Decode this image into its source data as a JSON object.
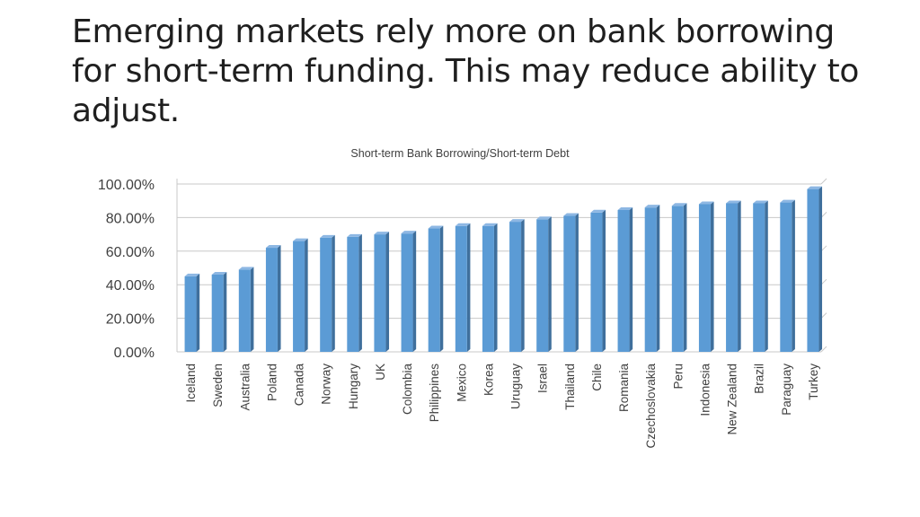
{
  "slide": {
    "title": "Emerging markets rely more on bank borrowing for short-term funding. This may reduce ability to adjust."
  },
  "colors": {
    "bar_front": "#5b9bd5",
    "bar_side": "#3f6f9c",
    "bar_top": "#8db7e3",
    "grid": "#c8c8c8",
    "text": "#404040"
  },
  "chart_data": {
    "type": "bar",
    "title": "Short-term Bank Borrowing/Short-term Debt",
    "xlabel": "",
    "ylabel": "",
    "ylim": [
      0,
      100
    ],
    "ytick_values": [
      0,
      20,
      40,
      60,
      80,
      100
    ],
    "ytick_labels": [
      "0.00%",
      "20.00%",
      "40.00%",
      "60.00%",
      "80.00%",
      "100.00%"
    ],
    "grid": true,
    "legend": "none",
    "categories": [
      "Iceland",
      "Sweden",
      "Australia",
      "Poland",
      "Canada",
      "Norway",
      "Hungary",
      "UK",
      "Colombia",
      "Philippines",
      "Mexico",
      "Korea",
      "Uruguay",
      "Israel",
      "Thailand",
      "Chile",
      "Romania",
      "Czechoslovakia",
      "Peru",
      "Indonesia",
      "New Zealand",
      "Brazil",
      "Paraguay",
      "Turkey"
    ],
    "values": [
      45,
      46,
      49,
      62,
      66,
      68,
      68.5,
      70,
      70.5,
      73.5,
      75,
      75,
      77.5,
      79,
      81,
      83,
      84.5,
      86,
      87,
      88,
      88.5,
      88.5,
      89,
      97
    ]
  }
}
